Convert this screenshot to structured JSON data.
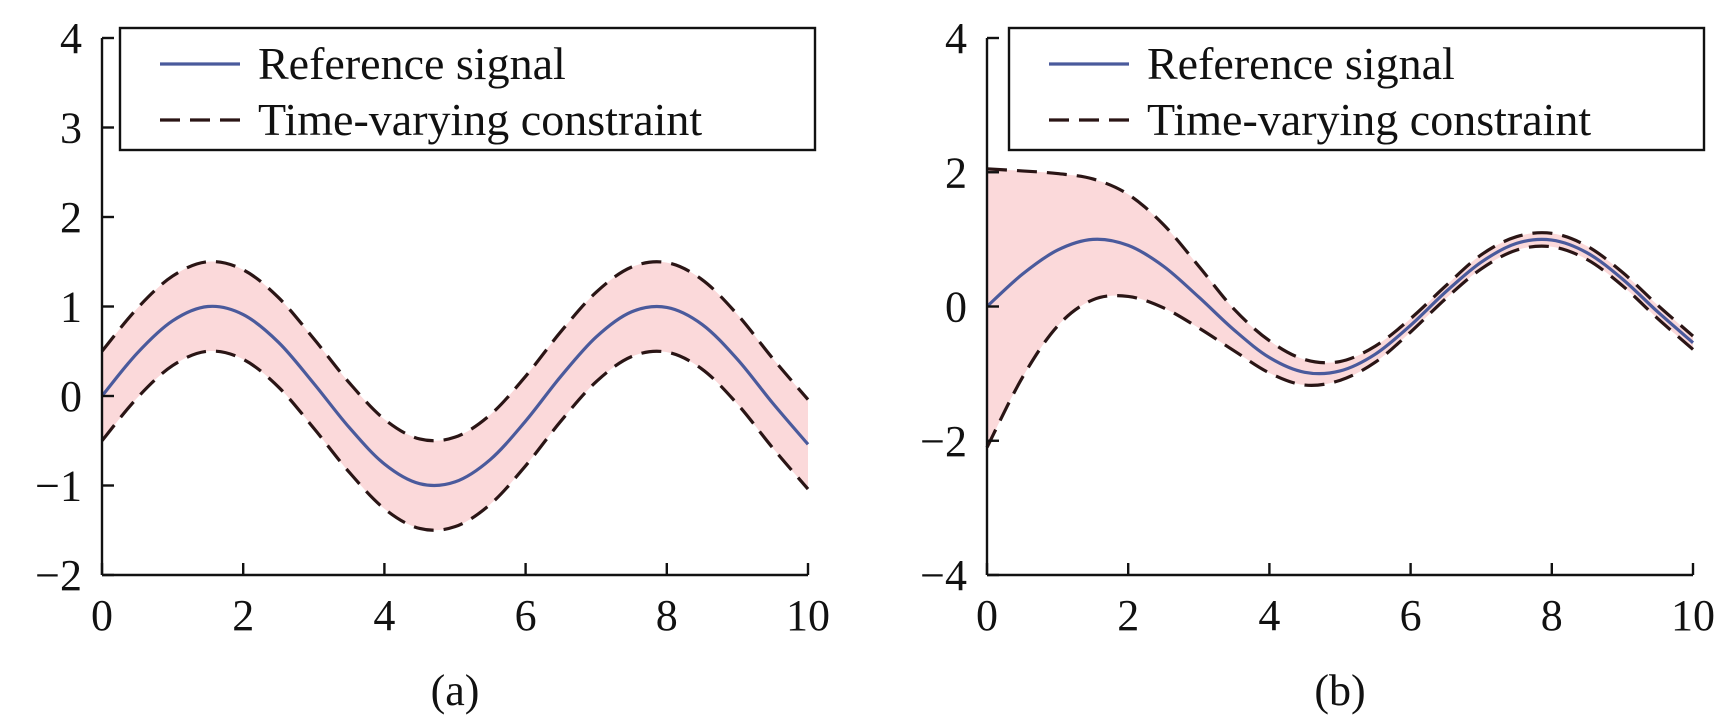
{
  "chart_data": [
    {
      "type": "line",
      "caption": "(a)",
      "xlim": [
        0,
        10
      ],
      "ylim": [
        -2,
        4
      ],
      "xticks": [
        0,
        2,
        4,
        6,
        8,
        10
      ],
      "yticks": [
        -2,
        -1,
        0,
        1,
        2,
        3,
        4
      ],
      "xtick_labels": [
        "0",
        "2",
        "4",
        "6",
        "8",
        "10"
      ],
      "ytick_labels": [
        "−2",
        "−1",
        "0",
        "1",
        "2",
        "3",
        "4"
      ],
      "grid": false,
      "legend": {
        "position": "top-right",
        "entries": [
          "Reference signal",
          "Time-varying constraint"
        ]
      },
      "series": [
        {
          "name": "Reference signal",
          "style": "solid",
          "color": "#4a5a9c",
          "x": [
            0,
            0.5,
            1,
            1.5,
            2,
            2.5,
            3,
            3.5,
            4,
            4.5,
            5,
            5.5,
            6,
            6.5,
            7,
            7.5,
            8,
            8.5,
            9,
            9.5,
            10
          ],
          "y": [
            0,
            0.48,
            0.84,
            1.0,
            0.91,
            0.6,
            0.14,
            -0.35,
            -0.76,
            -0.98,
            -0.96,
            -0.71,
            -0.28,
            0.22,
            0.66,
            0.94,
            0.99,
            0.8,
            0.41,
            -0.08,
            -0.54
          ]
        },
        {
          "name": "Time-varying constraint",
          "style": "dashed",
          "role": "upper",
          "color": "#2a1515",
          "x": [
            0,
            0.5,
            1,
            1.5,
            2,
            2.5,
            3,
            3.5,
            4,
            4.5,
            5,
            5.5,
            6,
            6.5,
            7,
            7.5,
            8,
            8.5,
            9,
            9.5,
            10
          ],
          "y": [
            0.5,
            0.98,
            1.34,
            1.5,
            1.41,
            1.1,
            0.64,
            0.15,
            -0.26,
            -0.48,
            -0.46,
            -0.21,
            0.22,
            0.72,
            1.16,
            1.44,
            1.49,
            1.3,
            0.91,
            0.42,
            -0.04
          ]
        },
        {
          "name": "Time-varying constraint",
          "style": "dashed",
          "role": "lower",
          "color": "#2a1515",
          "x": [
            0,
            0.5,
            1,
            1.5,
            2,
            2.5,
            3,
            3.5,
            4,
            4.5,
            5,
            5.5,
            6,
            6.5,
            7,
            7.5,
            8,
            8.5,
            9,
            9.5,
            10
          ],
          "y": [
            -0.5,
            -0.02,
            0.34,
            0.5,
            0.41,
            0.1,
            -0.36,
            -0.85,
            -1.26,
            -1.48,
            -1.46,
            -1.21,
            -0.78,
            -0.28,
            0.16,
            0.44,
            0.49,
            0.3,
            -0.09,
            -0.58,
            -1.04
          ]
        }
      ],
      "band_color": "#fbd9da"
    },
    {
      "type": "line",
      "caption": "(b)",
      "xlim": [
        0,
        10
      ],
      "ylim": [
        -4,
        4
      ],
      "xticks": [
        0,
        2,
        4,
        6,
        8,
        10
      ],
      "yticks": [
        -4,
        -2,
        0,
        2,
        4
      ],
      "xtick_labels": [
        "0",
        "2",
        "4",
        "6",
        "8",
        "10"
      ],
      "ytick_labels": [
        "−4",
        "−2",
        "0",
        "2",
        "4"
      ],
      "grid": false,
      "legend": {
        "position": "top-right",
        "entries": [
          "Reference signal",
          "Time-varying constraint"
        ]
      },
      "series": [
        {
          "name": "Reference signal",
          "style": "solid",
          "color": "#4a5a9c",
          "x": [
            0,
            0.5,
            1,
            1.5,
            2,
            2.5,
            3,
            3.5,
            4,
            4.5,
            5,
            5.5,
            6,
            6.5,
            7,
            7.5,
            8,
            8.5,
            9,
            9.5,
            10
          ],
          "y": [
            0,
            0.48,
            0.84,
            1.0,
            0.91,
            0.6,
            0.14,
            -0.35,
            -0.76,
            -0.98,
            -0.96,
            -0.71,
            -0.28,
            0.22,
            0.66,
            0.94,
            0.99,
            0.8,
            0.41,
            -0.08,
            -0.54
          ]
        },
        {
          "name": "Time-varying constraint",
          "style": "dashed",
          "role": "upper",
          "color": "#2a1515",
          "x": [
            0,
            0.5,
            1,
            1.5,
            2,
            2.5,
            3,
            3.5,
            4,
            4.5,
            5,
            5.5,
            6,
            6.5,
            7,
            7.5,
            8,
            8.5,
            9,
            9.5,
            10
          ],
          "y": [
            2.05,
            2.02,
            1.98,
            1.9,
            1.67,
            1.22,
            0.6,
            -0.04,
            -0.51,
            -0.79,
            -0.82,
            -0.59,
            -0.18,
            0.31,
            0.77,
            1.04,
            1.09,
            0.9,
            0.51,
            0.02,
            -0.44
          ]
        },
        {
          "name": "Time-varying constraint",
          "style": "dashed",
          "role": "lower",
          "color": "#2a1515",
          "x": [
            0,
            0.5,
            1,
            1.5,
            2,
            2.5,
            3,
            3.5,
            4,
            4.5,
            5,
            5.5,
            6,
            6.5,
            7,
            7.5,
            8,
            8.5,
            9,
            9.5,
            10
          ],
          "y": [
            -2.1,
            -1.06,
            -0.29,
            0.1,
            0.15,
            -0.02,
            -0.32,
            -0.66,
            -0.99,
            -1.17,
            -1.1,
            -0.83,
            -0.38,
            0.12,
            0.56,
            0.84,
            0.89,
            0.7,
            0.31,
            -0.18,
            -0.64
          ]
        }
      ],
      "band_color": "#fbd9da"
    }
  ]
}
